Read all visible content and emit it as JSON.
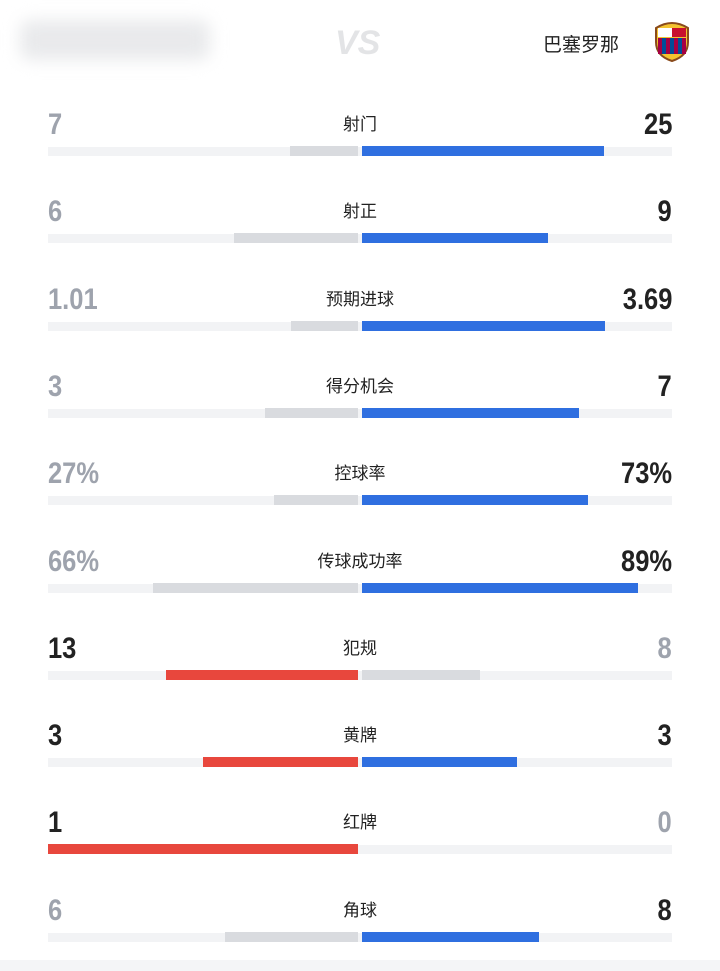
{
  "header": {
    "center": "VS",
    "away_team": "巴塞罗那"
  },
  "stats": [
    {
      "label": "射门",
      "home": 7,
      "away": 25
    },
    {
      "label": "射正",
      "home": 6,
      "away": 9
    },
    {
      "label": "预期进球",
      "home": 1.01,
      "away": 3.69
    },
    {
      "label": "得分机会",
      "home": 3,
      "away": 7
    },
    {
      "label": "控球率",
      "home": 27,
      "away": 73,
      "home_label": "27%",
      "away_label": "73%"
    },
    {
      "label": "传球成功率",
      "home": 66,
      "away": 89,
      "home_label": "66%",
      "away_label": "89%"
    },
    {
      "label": "犯规",
      "home": 13,
      "away": 8
    },
    {
      "label": "黄牌",
      "home": 3,
      "away": 3
    },
    {
      "label": "红牌",
      "home": 1,
      "away": 0
    },
    {
      "label": "角球",
      "home": 6,
      "away": 8
    }
  ]
}
